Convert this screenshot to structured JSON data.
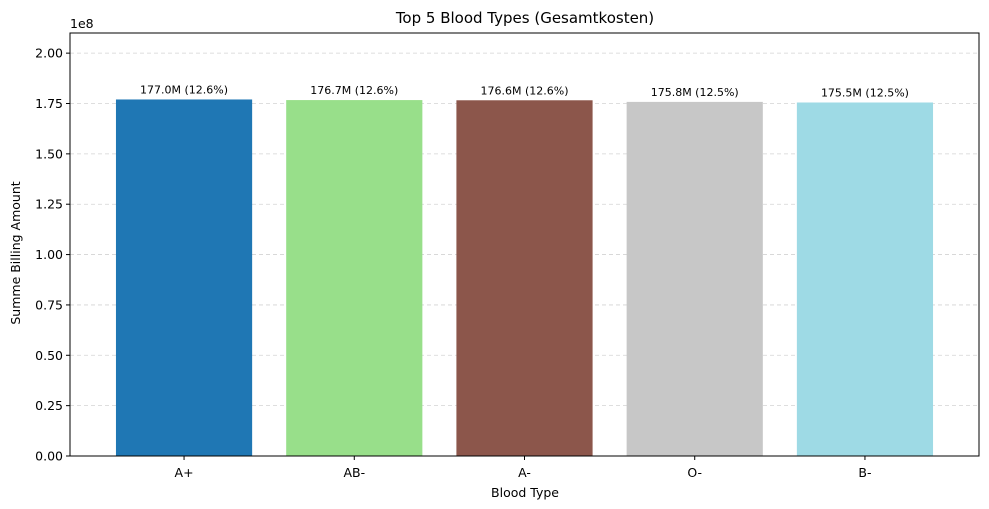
{
  "chart_data": {
    "type": "bar",
    "title": "Top 5 Blood Types (Gesamtkosten)",
    "xlabel": "Blood Type",
    "ylabel": "Summe Billing Amount",
    "y_offset_label": "1e8",
    "ylim": [
      0,
      2.1
    ],
    "y_ticks": [
      0.0,
      0.25,
      0.5,
      0.75,
      1.0,
      1.25,
      1.5,
      1.75,
      2.0
    ],
    "y_tick_labels": [
      "0.00",
      "0.25",
      "0.50",
      "0.75",
      "1.00",
      "1.25",
      "1.50",
      "1.75",
      "2.00"
    ],
    "grid": "y-dashed",
    "categories": [
      "A+",
      "AB-",
      "A-",
      "O-",
      "B-"
    ],
    "values": [
      1.77,
      1.767,
      1.766,
      1.758,
      1.755
    ],
    "value_labels": [
      "177.0M (12.6%)",
      "176.7M (12.6%)",
      "176.6M (12.6%)",
      "175.8M (12.5%)",
      "175.5M (12.5%)"
    ],
    "colors": [
      "#1f77b4",
      "#98df8a",
      "#8c564b",
      "#c7c7c7",
      "#9edae5"
    ]
  }
}
